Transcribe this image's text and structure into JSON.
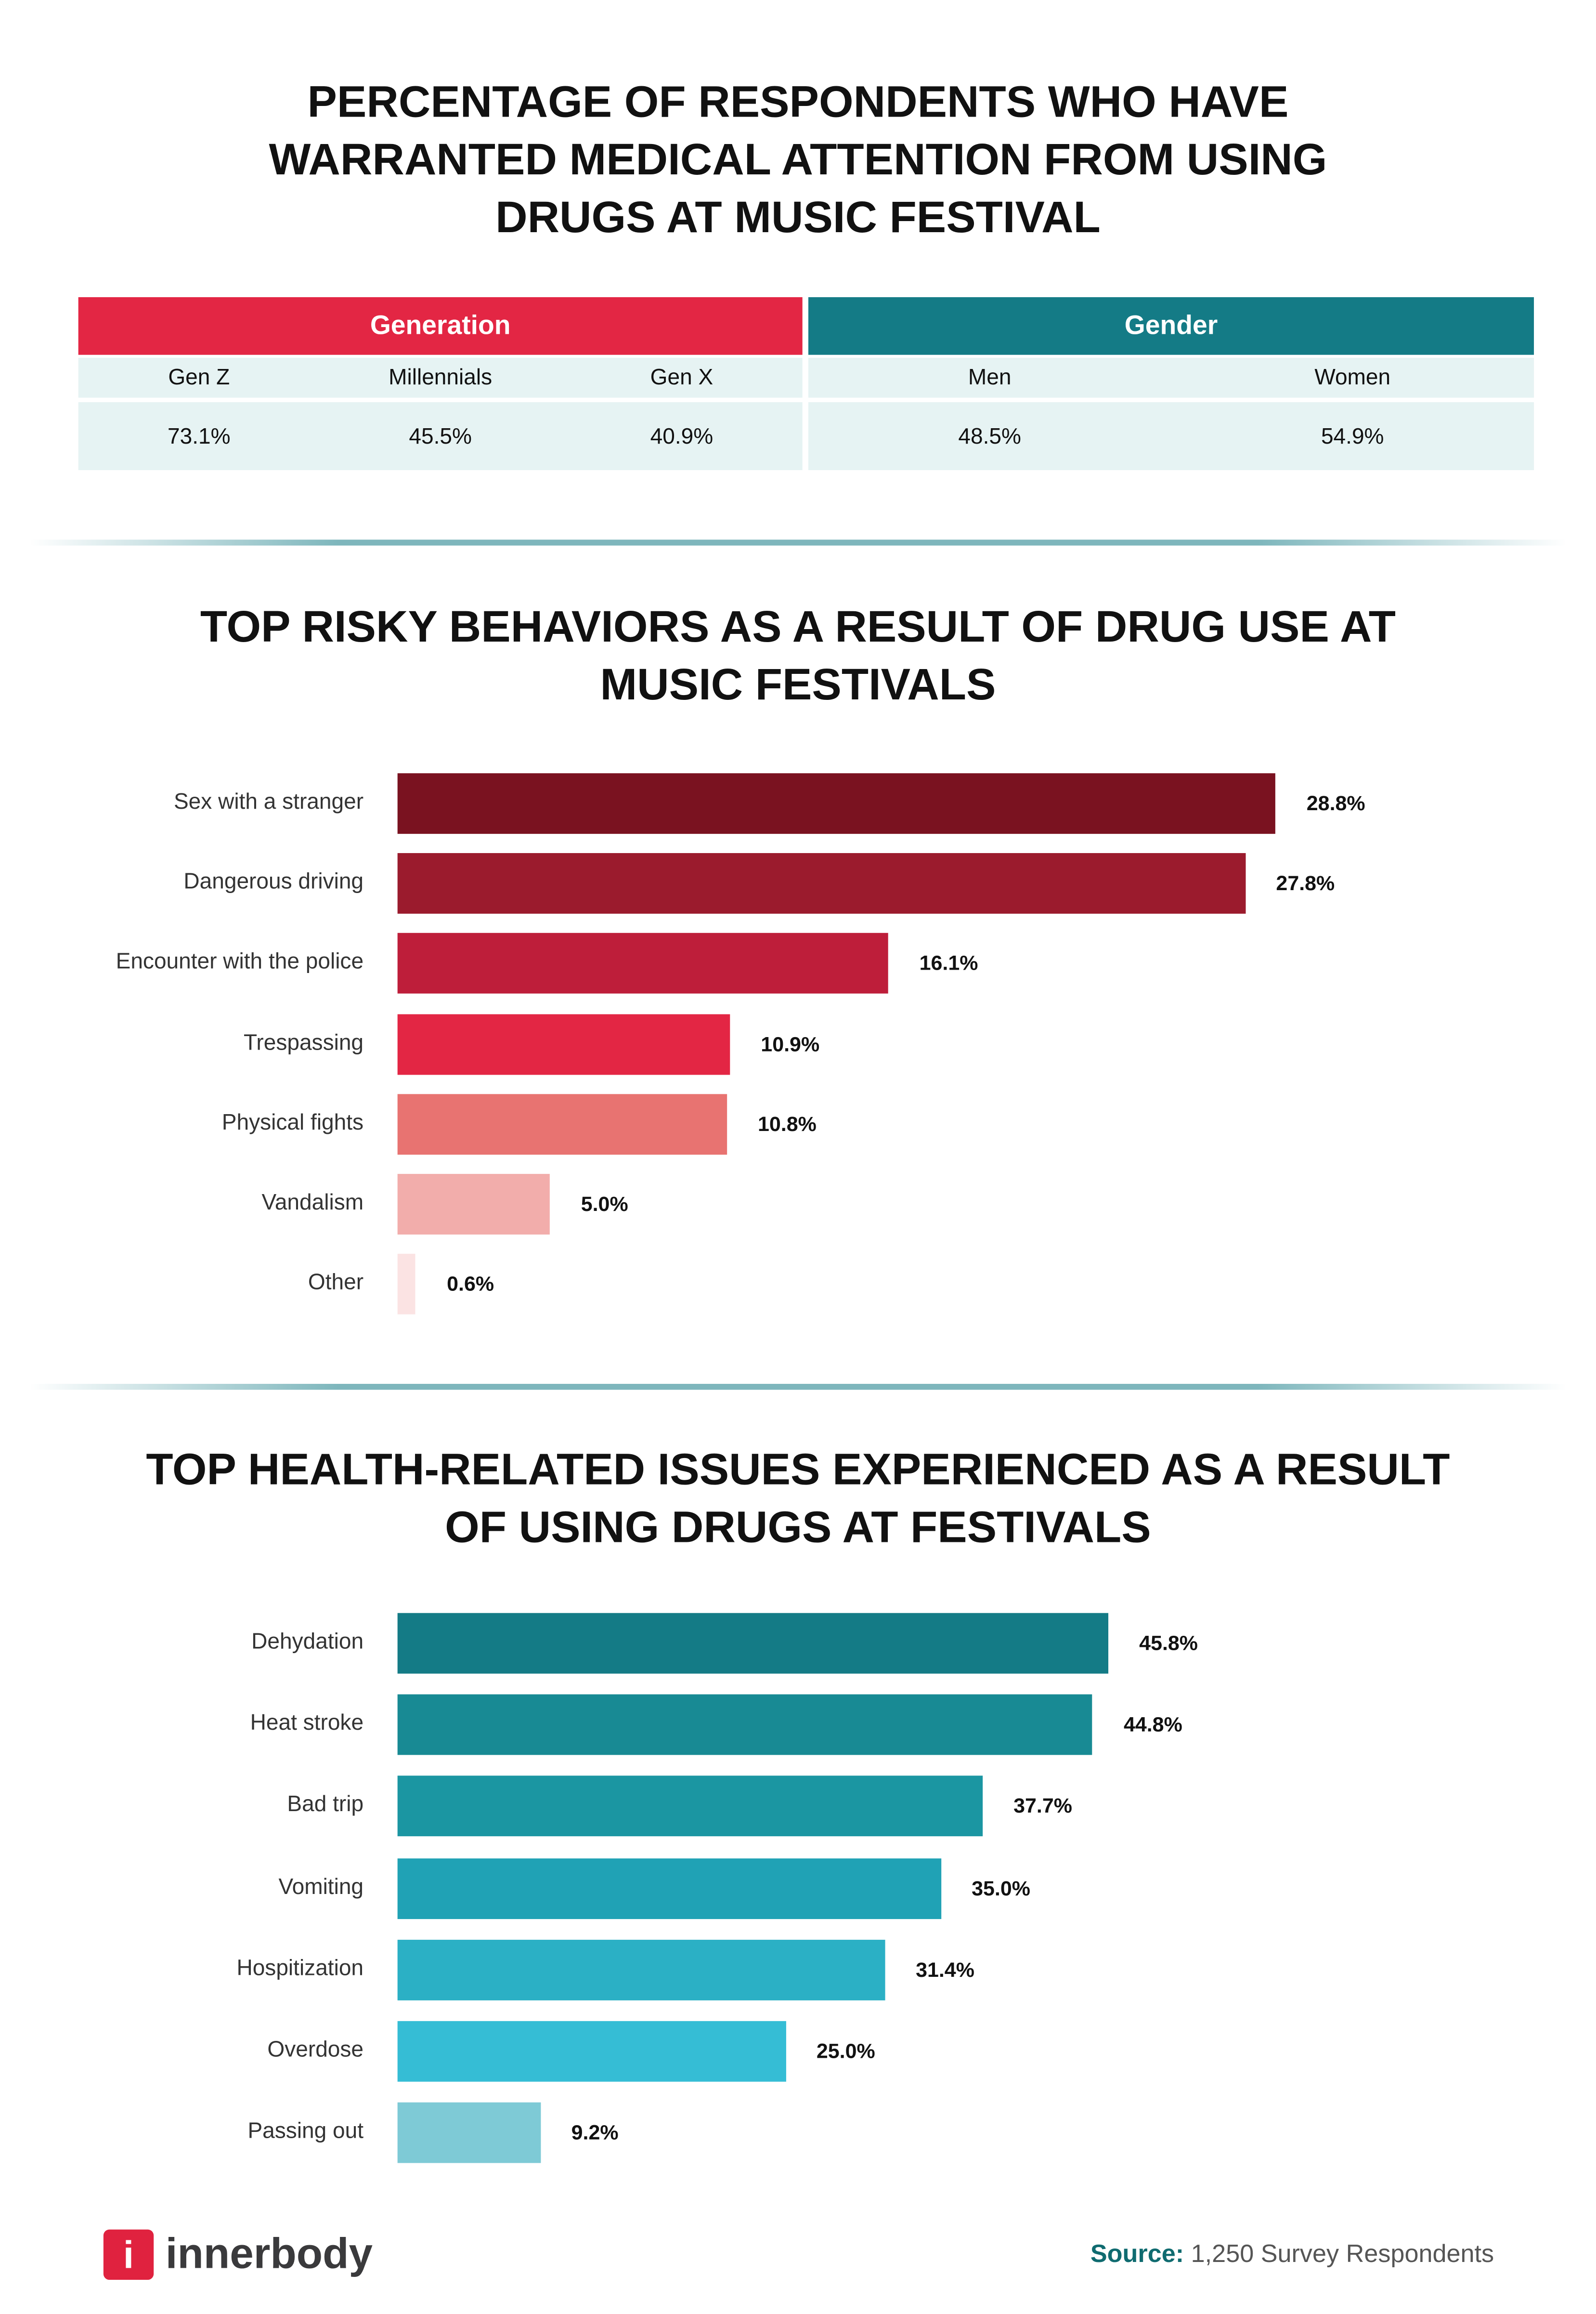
{
  "title1": "PERCENTAGE OF RESPONDENTS WHO HAVE WARRANTED MEDICAL ATTENTION FROM USING DRUGS AT MUSIC FESTIVAL",
  "table": {
    "generation": {
      "header": "Generation",
      "color": "#e32644",
      "cols": [
        "Gen Z",
        "Millennials",
        "Gen X"
      ],
      "values": [
        "73.1%",
        "45.5%",
        "40.9%"
      ]
    },
    "gender": {
      "header": "Gender",
      "color": "#147b86",
      "cols": [
        "Men",
        "Women"
      ],
      "values": [
        "48.5%",
        "54.9%"
      ]
    }
  },
  "chart_data": [
    {
      "type": "bar",
      "orientation": "horizontal",
      "title": "TOP RISKY BEHAVIORS AS A RESULT OF DRUG USE AT MUSIC FESTIVALS",
      "categories": [
        "Sex with a stranger",
        "Dangerous driving",
        "Encounter with the police",
        "Trespassing",
        "Physical fights",
        "Vandalism",
        "Other"
      ],
      "values": [
        28.8,
        27.8,
        16.1,
        10.9,
        10.8,
        5.0,
        0.6
      ],
      "labels": [
        "28.8%",
        "27.8%",
        "16.1%",
        "10.9%",
        "10.8%",
        "5.0%",
        "0.6%"
      ],
      "colors": [
        "#7a1220",
        "#9b1b2d",
        "#be1e3a",
        "#e32644",
        "#e87371",
        "#f2adab",
        "#fbe3e3"
      ]
    },
    {
      "type": "bar",
      "orientation": "horizontal",
      "title": "TOP HEALTH-RELATED ISSUES EXPERIENCED AS A RESULT OF USING DRUGS AT FESTIVALS",
      "categories": [
        "Dehydation",
        "Heat stroke",
        "Bad trip",
        "Vomiting",
        "Hospitization",
        "Overdose",
        "Passing out"
      ],
      "values": [
        45.8,
        44.8,
        37.7,
        35.0,
        31.4,
        25.0,
        9.2
      ],
      "labels": [
        "45.8%",
        "44.8%",
        "37.7%",
        "35.0%",
        "31.4%",
        "25.0%",
        "9.2%"
      ],
      "colors": [
        "#147b86",
        "#188a94",
        "#1b96a2",
        "#20a2b5",
        "#2bb0c5",
        "#35bdd5",
        "#7ecad6"
      ]
    }
  ],
  "footer": {
    "logo": "innerbody",
    "source_label": "Source:",
    "source_text": " 1,250 Survey Respondents"
  }
}
